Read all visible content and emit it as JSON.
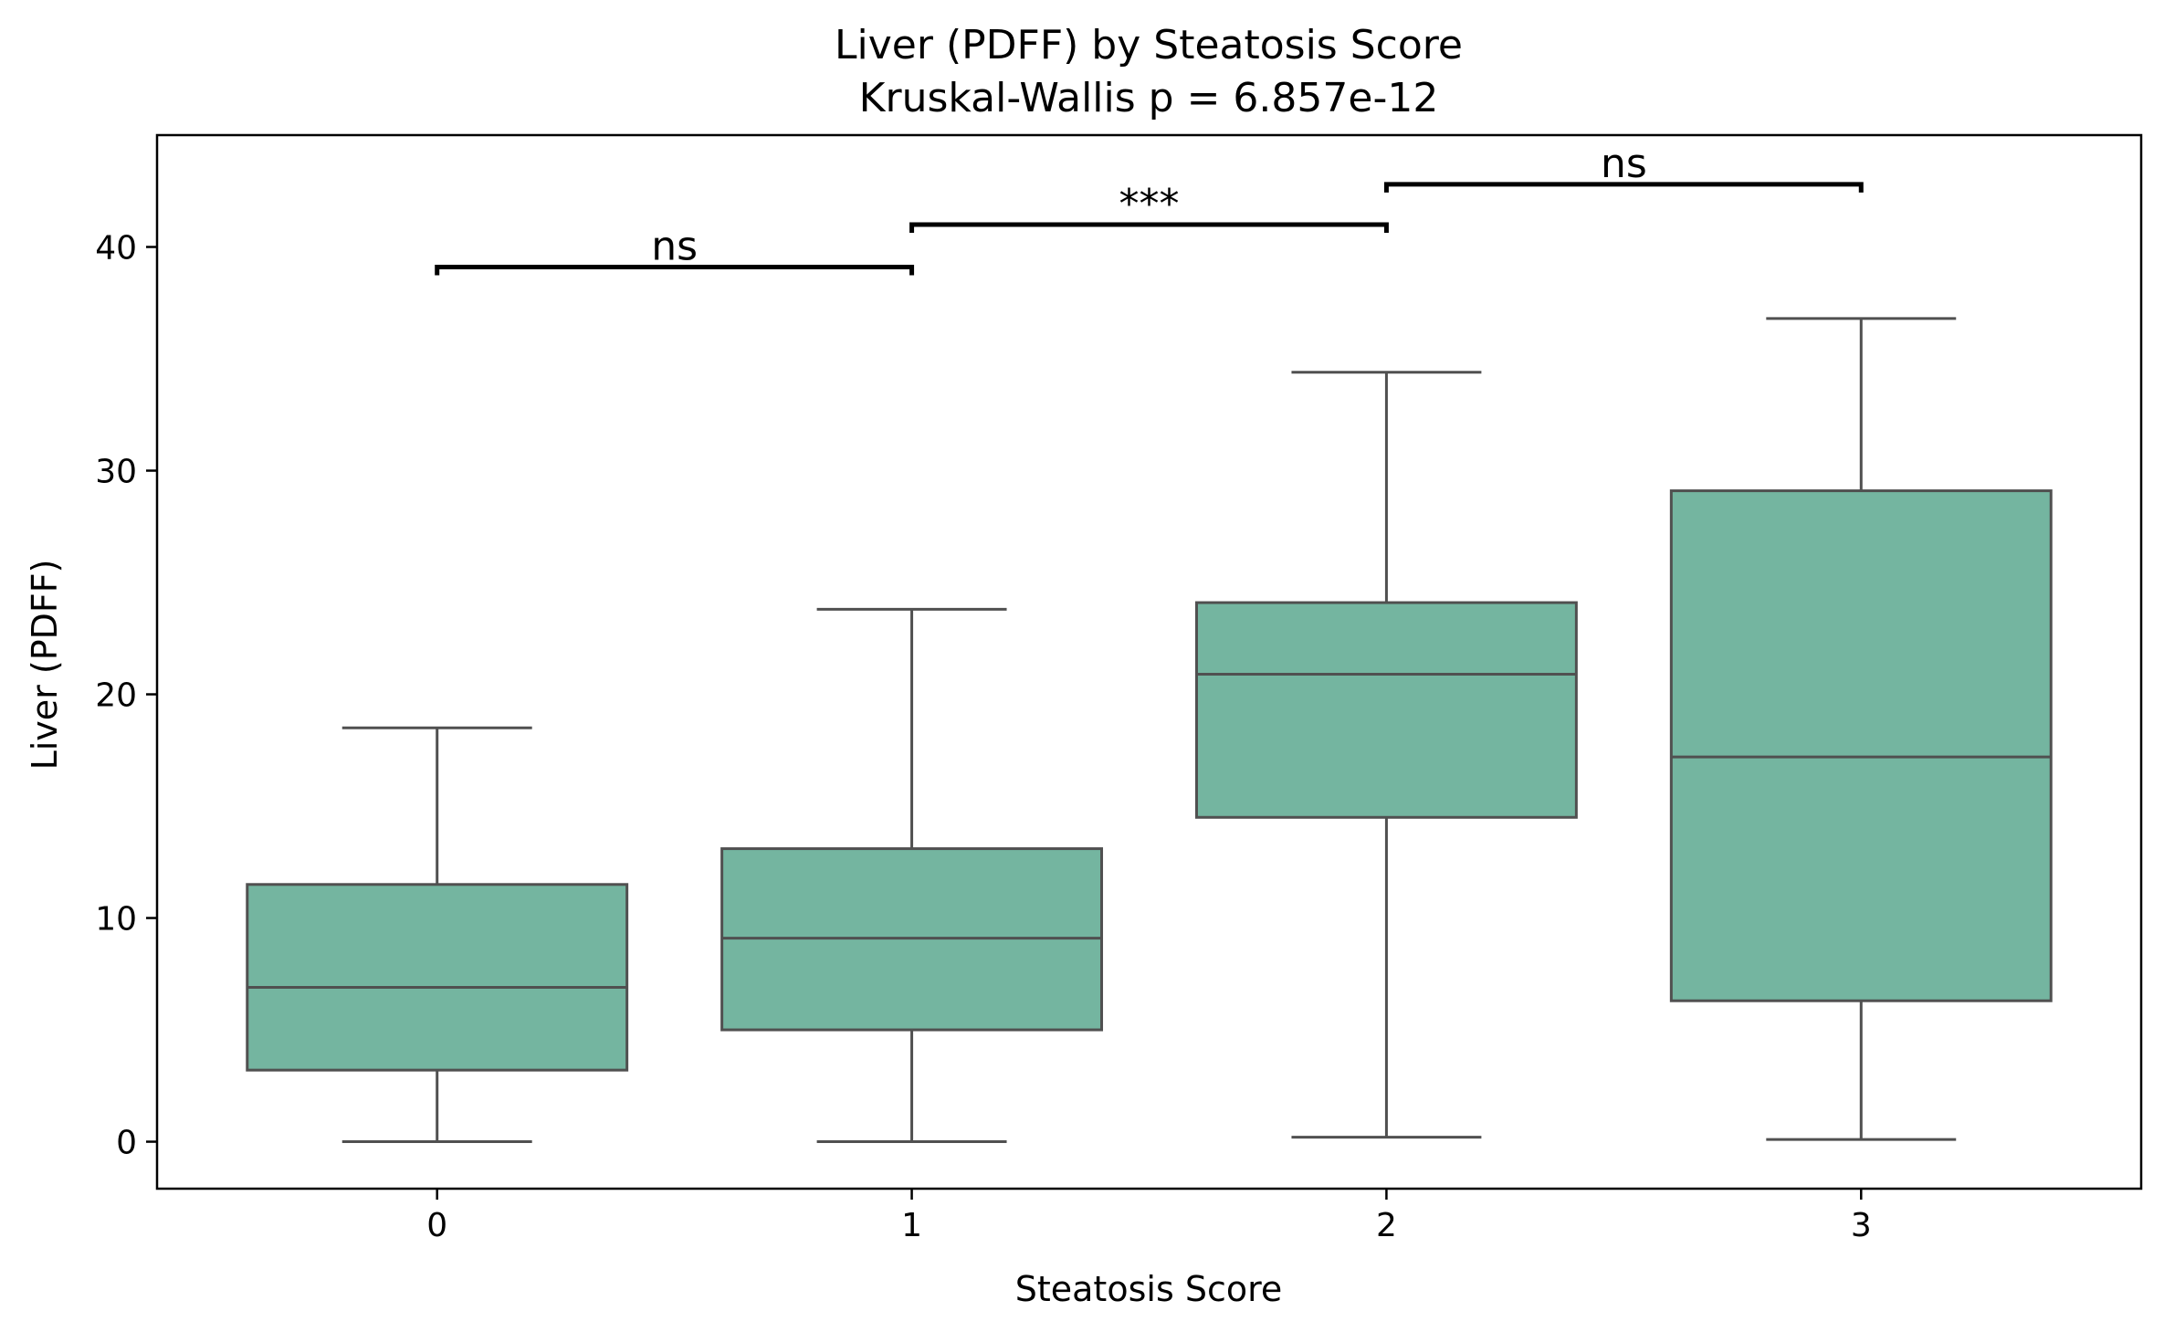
{
  "chart_data": {
    "type": "box",
    "title": "Liver (PDFF) by Steatosis Score",
    "subtitle": "Kruskal-Wallis p = 6.857e-12",
    "xlabel": "Steatosis Score",
    "ylabel": "Liver (PDFF)",
    "ylim": [
      -2.1,
      45.0
    ],
    "yticks": [
      0,
      10,
      20,
      30,
      40
    ],
    "categories": [
      "0",
      "1",
      "2",
      "3"
    ],
    "boxes": [
      {
        "category": "0",
        "whisker_low": 0.0,
        "q1": 3.2,
        "median": 6.9,
        "q3": 11.5,
        "whisker_high": 18.5
      },
      {
        "category": "1",
        "whisker_low": 0.0,
        "q1": 5.0,
        "median": 9.1,
        "q3": 13.1,
        "whisker_high": 23.8
      },
      {
        "category": "2",
        "whisker_low": 0.2,
        "q1": 14.5,
        "median": 20.9,
        "q3": 24.1,
        "whisker_high": 34.4
      },
      {
        "category": "3",
        "whisker_low": 0.1,
        "q1": 6.3,
        "median": 17.2,
        "q3": 29.1,
        "whisker_high": 36.8
      }
    ],
    "annotations": [
      {
        "from": "0",
        "to": "1",
        "y": 39.1,
        "label": "ns"
      },
      {
        "from": "1",
        "to": "2",
        "y": 41.0,
        "label": "***"
      },
      {
        "from": "2",
        "to": "3",
        "y": 42.8,
        "label": "ns"
      }
    ],
    "colors": {
      "box_fill": "#74b5a0",
      "box_edge": "#505050",
      "bracket": "#000000"
    },
    "grid": false,
    "legend": "none"
  }
}
